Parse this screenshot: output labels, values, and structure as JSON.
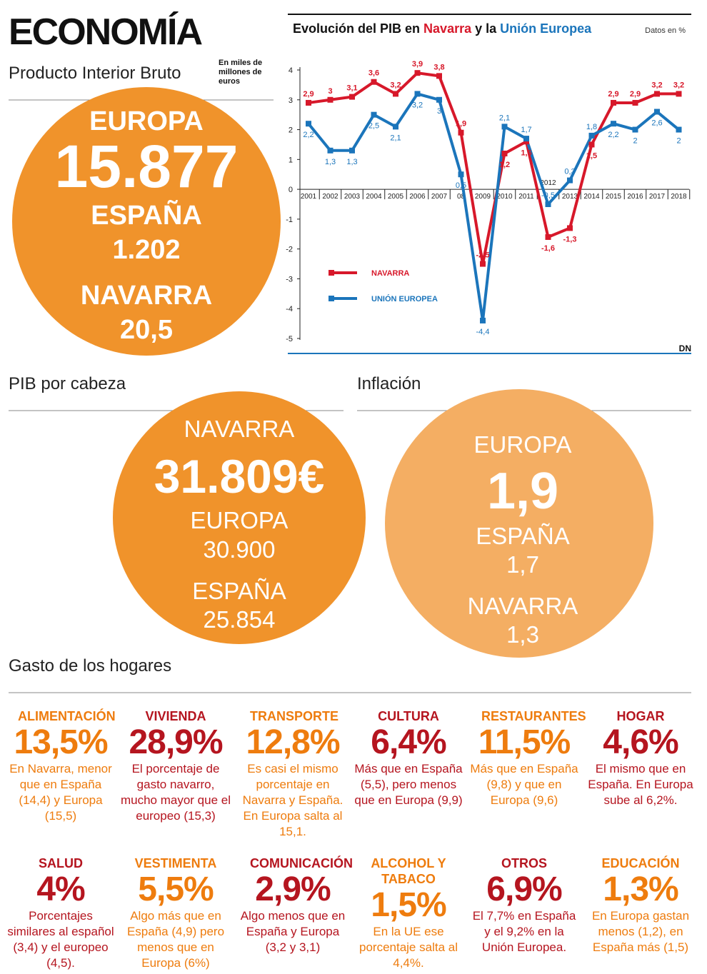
{
  "header": {
    "title": "ECONOMÍA"
  },
  "pib": {
    "title": "Producto Interior Bruto",
    "note": "En miles de millones de euros",
    "items": [
      {
        "label": "EUROPA",
        "value": "15.877"
      },
      {
        "label": "ESPAÑA",
        "value": "1.202"
      },
      {
        "label": "NAVARRA",
        "value": "20,5"
      }
    ]
  },
  "chart_data": {
    "type": "line",
    "title": [
      "Evolución del PIB en ",
      "Navarra",
      " y la ",
      "Unión Europea"
    ],
    "subtitle": "Datos en %",
    "source": "DN",
    "categories": [
      "2001",
      "2002",
      "2003",
      "2004",
      "2005",
      "2006",
      "2007",
      "08",
      "2009",
      "2010",
      "2011",
      "2012",
      "2013",
      "2014",
      "2015",
      "2016",
      "2017",
      "2018"
    ],
    "series": [
      {
        "name": "NAVARRA",
        "color": "#d7182a",
        "values": [
          2.9,
          3,
          3.1,
          3.6,
          3.2,
          3.9,
          3.8,
          1.9,
          -2.5,
          1.2,
          1.6,
          -1.6,
          -1.3,
          1.5,
          2.9,
          2.9,
          3.2,
          3.2
        ],
        "value_labels": [
          "2,9",
          "3",
          "3,1",
          "3,6",
          "3,2",
          "3,9",
          "3,8",
          "1,9",
          "-2,5",
          "1,2",
          "1,6",
          "-1,6",
          "-1,3",
          "1,5",
          "2,9",
          "2,9",
          "3,2",
          "3,2"
        ]
      },
      {
        "name": "UNIÓN EUROPEA",
        "color": "#1b75bb",
        "values": [
          2.2,
          1.3,
          1.3,
          2.5,
          2.1,
          3.2,
          3,
          0.5,
          -4.4,
          2.1,
          1.7,
          -0.5,
          0.3,
          1.8,
          2.2,
          2,
          2.6,
          2
        ],
        "value_labels": [
          "2,2",
          "1,3",
          "1,3",
          "2,5",
          "2,1",
          "3,2",
          "3",
          "0,5",
          "-4,4",
          "2,1",
          "1,7",
          "-0,5",
          "0,3",
          "1,8",
          "2,2",
          "2",
          "2,6",
          "2"
        ]
      }
    ],
    "ylim": [
      -5,
      4
    ],
    "yticks": [
      -5,
      -4,
      -3,
      -2,
      -1,
      0,
      1,
      2,
      3,
      4
    ],
    "grid": false,
    "legend": "lower-left"
  },
  "pib_cabeza": {
    "title": "PIB por cabeza",
    "items": [
      {
        "label": "NAVARRA",
        "value": "31.809€"
      },
      {
        "label": "EUROPA",
        "value": "30.900"
      },
      {
        "label": "ESPAÑA",
        "value": "25.854"
      }
    ]
  },
  "inflacion": {
    "title": "Inflación",
    "items": [
      {
        "label": "EUROPA",
        "value": "1,9"
      },
      {
        "label": "ESPAÑA",
        "value": "1,7"
      },
      {
        "label": "NAVARRA",
        "value": "1,3"
      }
    ]
  },
  "gasto": {
    "title": "Gasto de los hogares",
    "items": [
      {
        "category": "ALIMENTACIÓN",
        "value": "13,5%",
        "text": "En Navarra, menor que en España (14,4) y Europa (15,5)"
      },
      {
        "category": "VIVIENDA",
        "value": "28,9%",
        "text": "El porcentaje de gasto navarro, mucho mayor que el europeo (15,3)"
      },
      {
        "category": "TRANSPORTE",
        "value": "12,8%",
        "text": "Es casi el mismo porcentaje en Navarra y España. En Europa salta al 15,1."
      },
      {
        "category": "CULTURA",
        "value": "6,4%",
        "text": "Más que en España (5,5), pero menos que en Europa (9,9)"
      },
      {
        "category": "RESTAURANTES",
        "value": "11,5%",
        "text": "Más que en España (9,8) y que en Europa (9,6)"
      },
      {
        "category": "HOGAR",
        "value": "4,6%",
        "text": "El mismo que en España. En Europa sube al 6,2%."
      },
      {
        "category": "SALUD",
        "value": "4%",
        "text": "Porcentajes similares al español (3,4) y el europeo (4,5)."
      },
      {
        "category": "VESTIMENTA",
        "value": "5,5%",
        "text": "Algo más que en España (4,9) pero menos que en Europa (6%)"
      },
      {
        "category": "COMUNICACIÓN",
        "value": "2,9%",
        "text": "Algo menos que en España y Europa (3,2 y 3,1)"
      },
      {
        "category": "ALCOHOL Y TABACO",
        "value": "1,5%",
        "text": "En la UE ese porcentaje salta al 4,4%."
      },
      {
        "category": "OTROS",
        "value": "6,9%",
        "text": "El 7,7% en España y el 9,2% en la Unión Europea."
      },
      {
        "category": "EDUCACIÓN",
        "value": "1,3%",
        "text": "En Europa gastan menos (1,2), en España más (1,5)"
      }
    ]
  }
}
